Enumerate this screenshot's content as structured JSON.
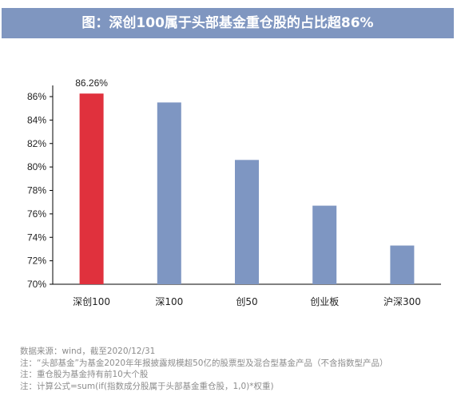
{
  "title": "图：深创100属于头部基金重仓股的占比超86%",
  "chart_data": {
    "type": "bar",
    "categories": [
      "深创100",
      "深100",
      "创50",
      "创业板",
      "沪深300"
    ],
    "values": [
      86.26,
      85.5,
      80.6,
      76.7,
      73.3
    ],
    "data_labels": [
      {
        "index": 0,
        "text": "86.26%"
      }
    ],
    "ylim": [
      70,
      86
    ],
    "yticks": [
      "70%",
      "72%",
      "74%",
      "76%",
      "78%",
      "80%",
      "82%",
      "84%",
      "86%"
    ],
    "colors": {
      "highlight": "#e0313d",
      "default": "#7e96c2"
    },
    "grid": false,
    "xlabel": "",
    "ylabel": ""
  },
  "notes": [
    "数据来源：wind，截至2020/12/31",
    "注：“头部基金”为基金2020年年报披露规模超50亿的股票型及混合型基金产品（不含指数型产品）",
    "注：重仓股为基金持有前10大个股",
    "注：计算公式=sum(if(指数成分股属于头部基金重仓股，1,0)*权重)"
  ]
}
